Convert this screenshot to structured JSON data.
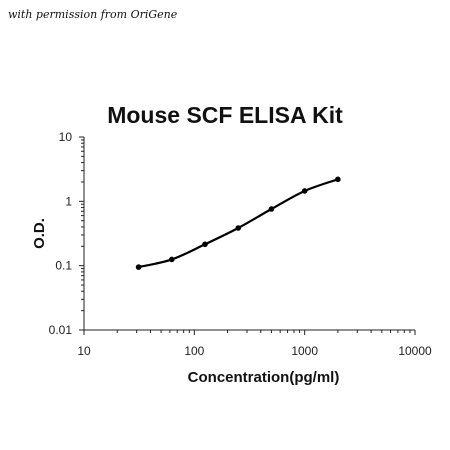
{
  "attribution": "with permission from OriGene",
  "chart_data": {
    "type": "line",
    "title": "Mouse SCF ELISA Kit",
    "xlabel": "Concentration(pg/ml)",
    "ylabel": "O.D.",
    "x_scale": "log",
    "y_scale": "log",
    "xlim": [
      10,
      10000
    ],
    "ylim": [
      0.01,
      10
    ],
    "x_ticks": [
      "10",
      "100",
      "1000",
      "10000"
    ],
    "y_ticks": [
      "0.01",
      "0.1",
      "1",
      "10"
    ],
    "grid": false,
    "legend": "none",
    "series": [
      {
        "x": [
          31.25,
          62.5,
          125,
          250,
          500,
          1000,
          2000
        ],
        "y": [
          0.095,
          0.125,
          0.215,
          0.385,
          0.76,
          1.45,
          2.2
        ]
      }
    ],
    "colors": {
      "line": "#000000",
      "marker": "#000000",
      "axis": "#222222"
    }
  }
}
